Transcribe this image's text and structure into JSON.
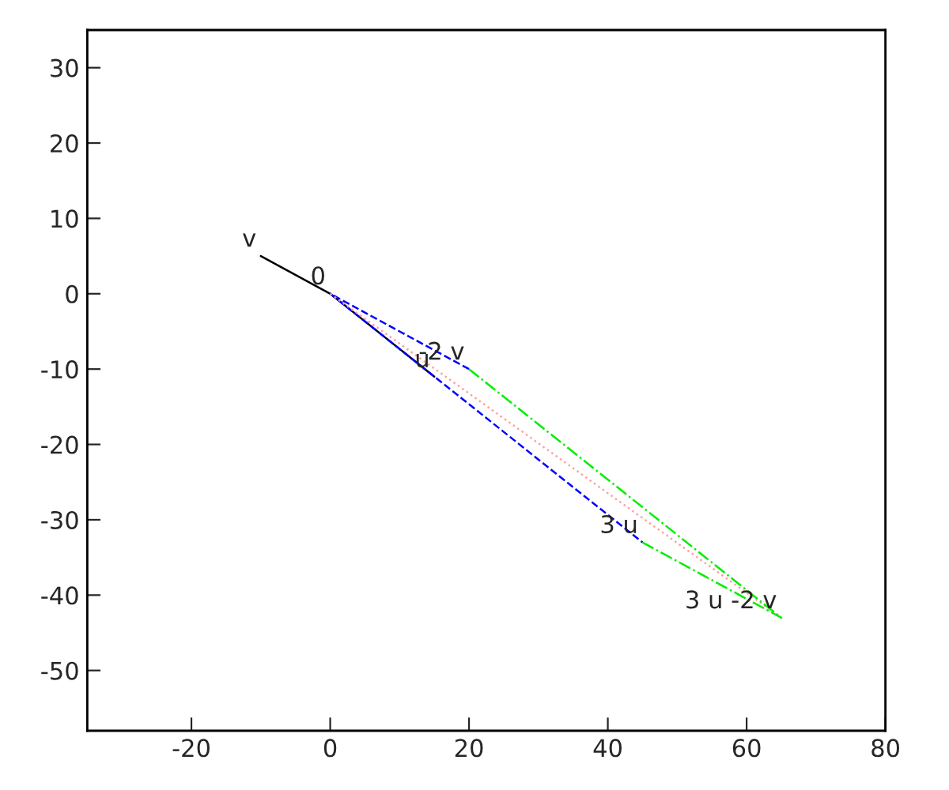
{
  "chart_data": {
    "type": "line",
    "series": [
      {
        "color": "#000000",
        "line_style": "solid",
        "x": [
          -10,
          0,
          15
        ],
        "values": [
          5,
          0,
          -11
        ]
      },
      {
        "color": "#0000ff",
        "line_style": "dashed",
        "x": [
          20,
          0,
          45
        ],
        "values": [
          -10,
          0,
          -33
        ]
      },
      {
        "color": "#ffa0a0",
        "line_style": "dotted",
        "x": [
          0,
          65
        ],
        "values": [
          0,
          -43
        ]
      },
      {
        "color": "#00ee00",
        "line_style": "dashdot",
        "x": [
          20,
          65,
          45
        ],
        "values": [
          -10,
          -43,
          -33
        ]
      }
    ],
    "xlim": [
      -35,
      80
    ],
    "ylim": [
      -58,
      35
    ],
    "xticks": [
      -20,
      0,
      20,
      40,
      60,
      80
    ],
    "yticks": [
      -50,
      -40,
      -30,
      -20,
      -10,
      0,
      10,
      20,
      30
    ],
    "annotations": [
      {
        "text": "v",
        "x": -10,
        "y": 5
      },
      {
        "text": "0",
        "x": 0,
        "y": 0
      },
      {
        "text": "-2 v",
        "x": 20,
        "y": -10
      },
      {
        "text": "u",
        "x": 15,
        "y": -11
      },
      {
        "text": "3 u",
        "x": 45,
        "y": -33
      },
      {
        "text": "3 u -2 v",
        "x": 65,
        "y": -43
      }
    ],
    "grid": false,
    "legend": false,
    "marker": "none"
  }
}
